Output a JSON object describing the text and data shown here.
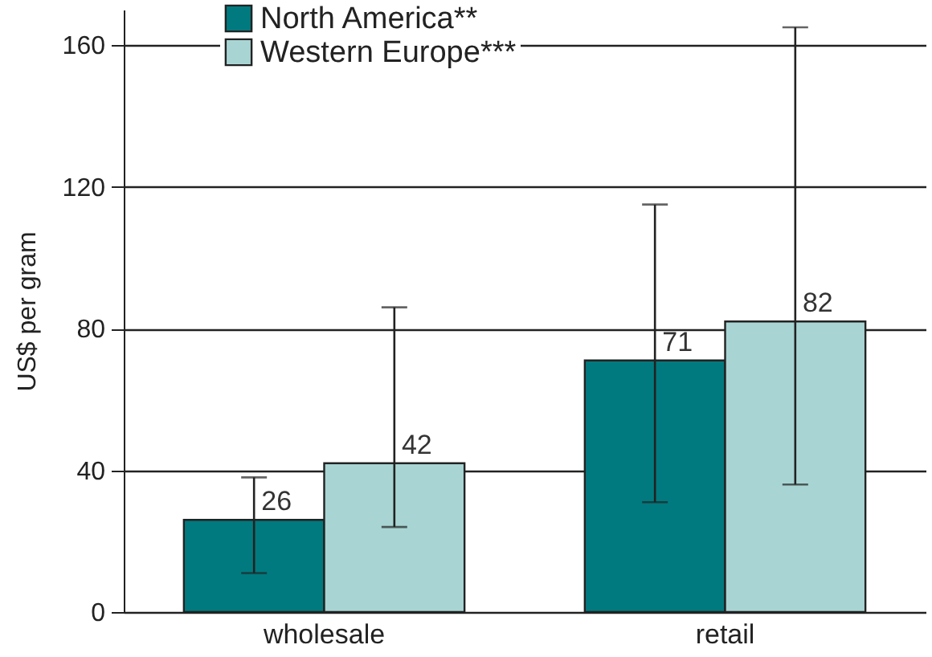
{
  "chart_data": {
    "type": "bar",
    "ylabel": "US$ per gram",
    "categories": [
      "wholesale",
      "retail"
    ],
    "series": [
      {
        "name": "North America**",
        "color": "#007a7f",
        "values": [
          26,
          71
        ],
        "errors": [
          [
            11,
            38
          ],
          [
            31,
            115
          ]
        ]
      },
      {
        "name": "Western Europe***",
        "color": "#a8d5d3",
        "values": [
          42,
          82
        ],
        "errors": [
          [
            24,
            86
          ],
          [
            36,
            165
          ]
        ]
      }
    ],
    "ylim": [
      0,
      170
    ],
    "yticks": [
      0,
      40,
      80,
      120,
      160
    ],
    "grid": "y",
    "legend": "top left",
    "data_labels": true
  }
}
